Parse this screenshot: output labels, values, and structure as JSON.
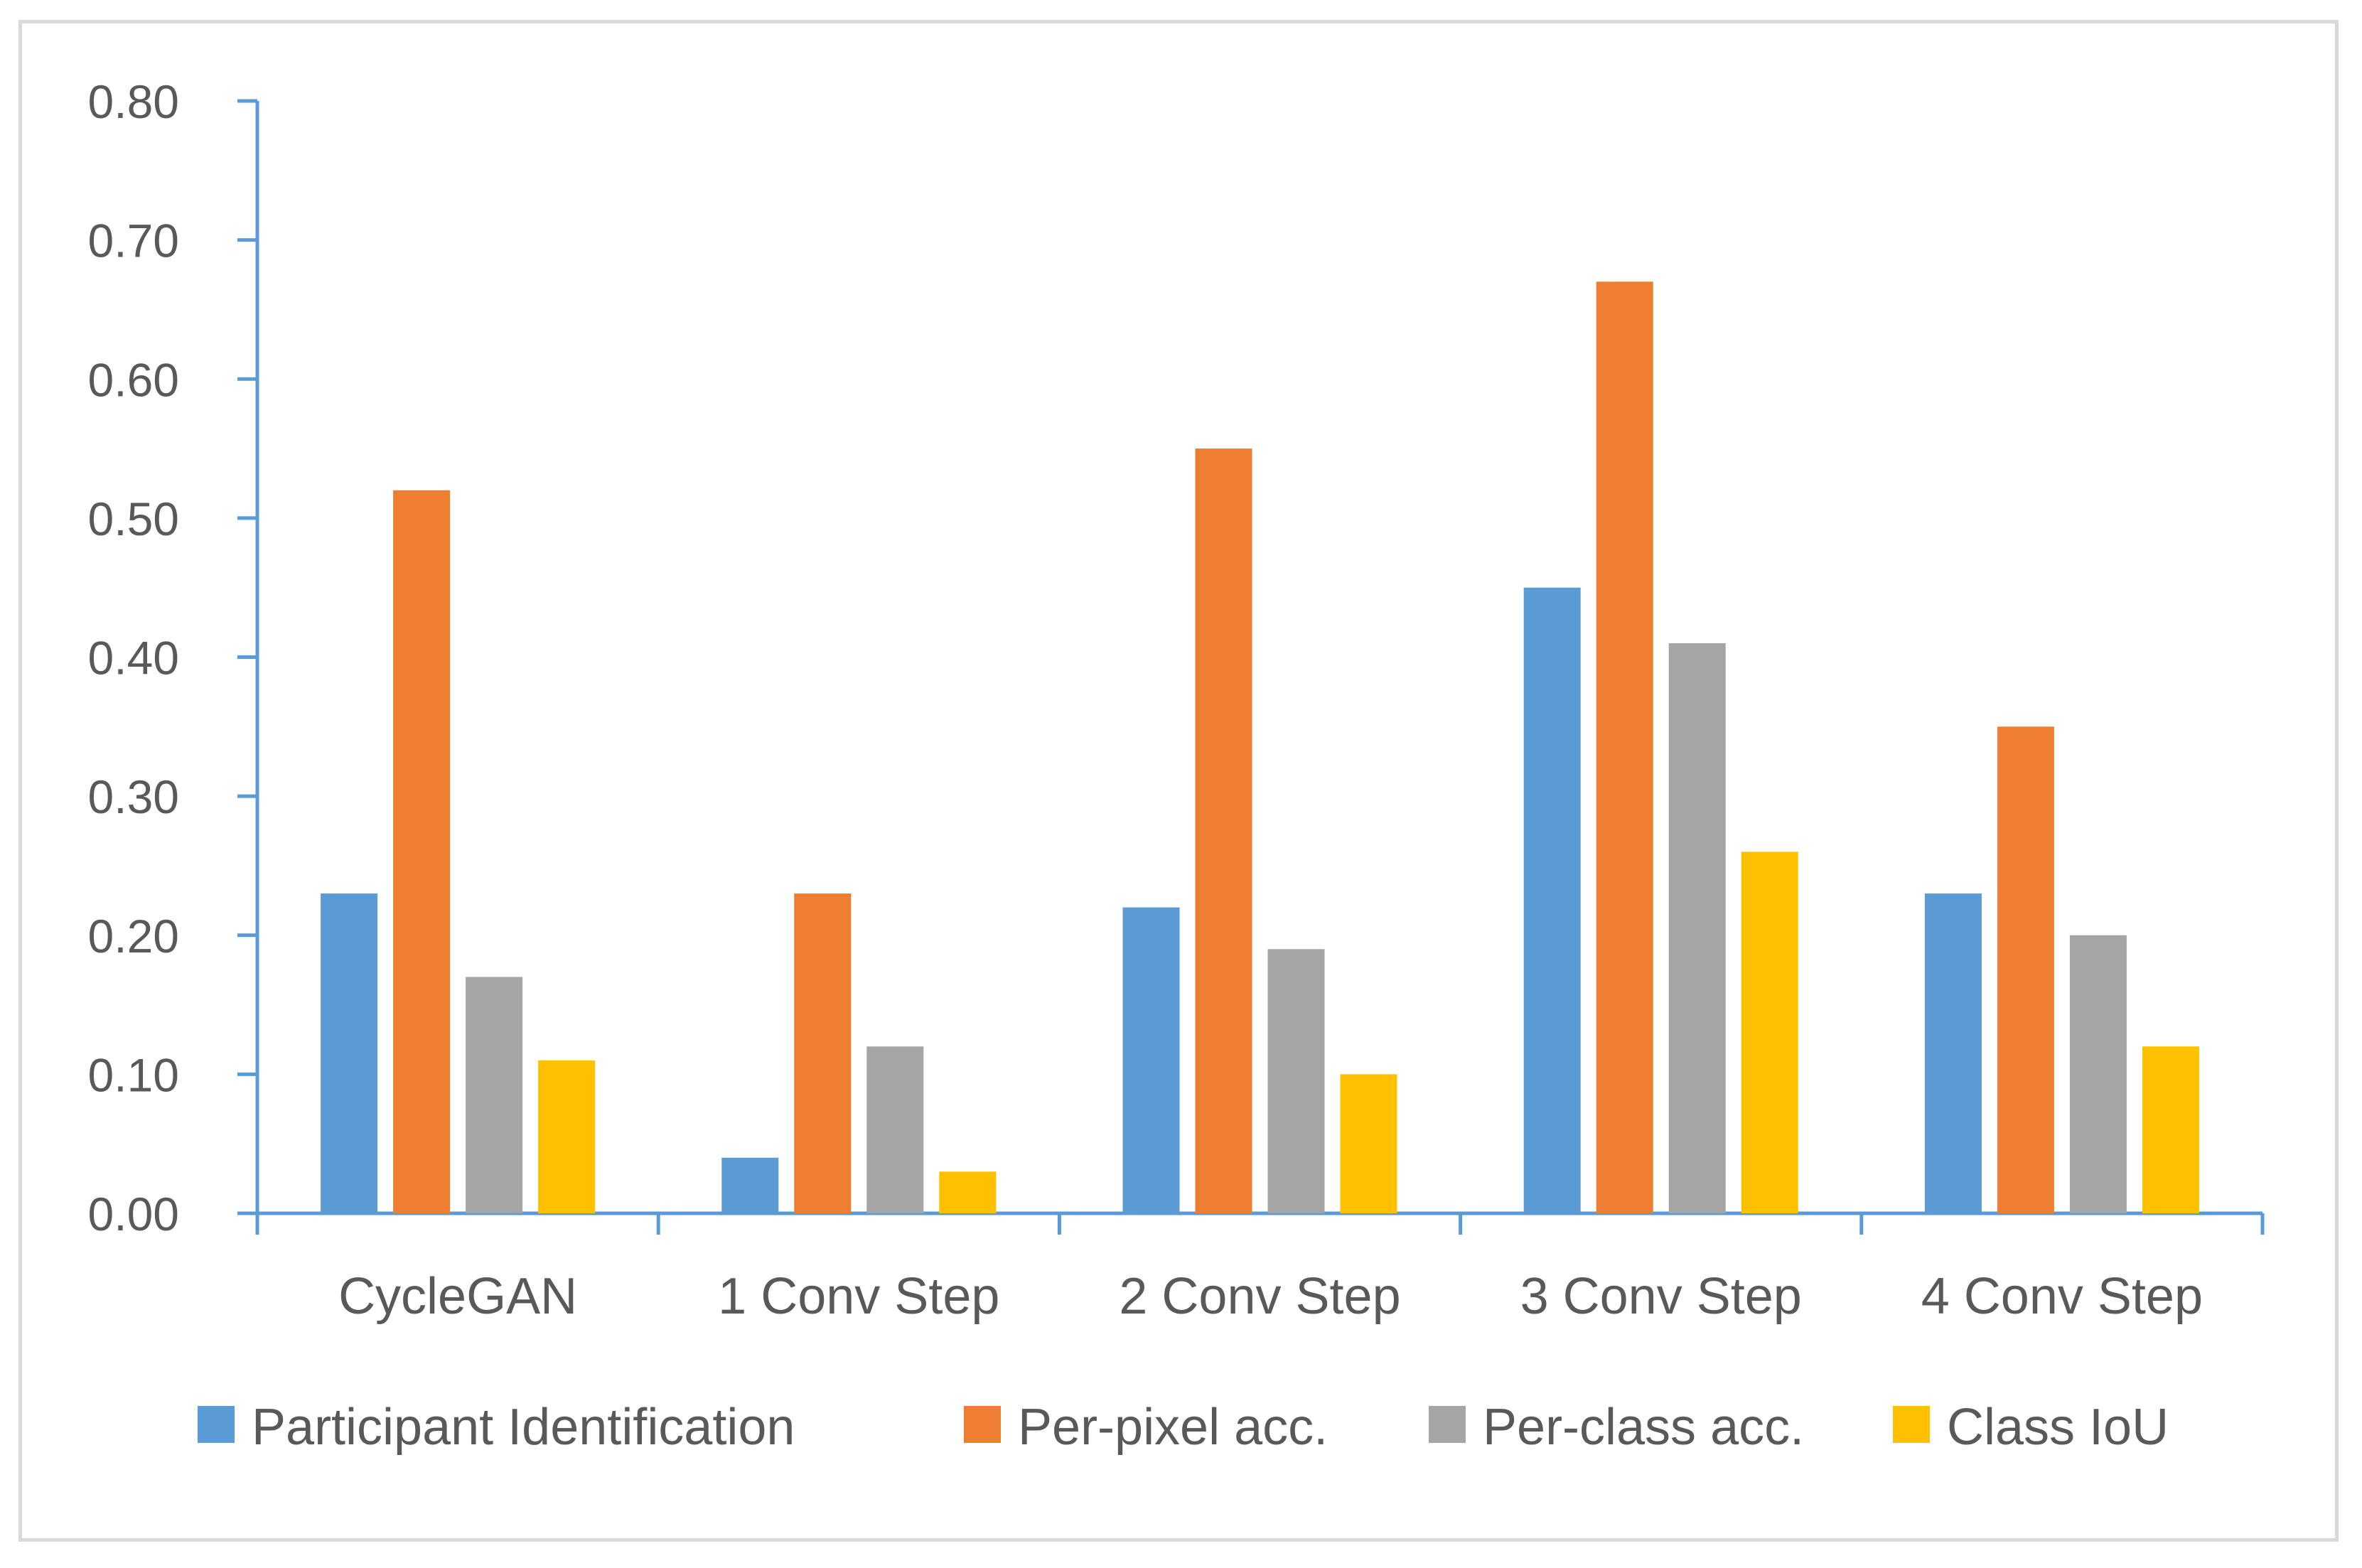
{
  "chart_data": {
    "type": "bar",
    "title": "",
    "xlabel": "",
    "ylabel": "",
    "ylim": [
      0,
      0.8
    ],
    "yticks": [
      0.0,
      0.1,
      0.2,
      0.3,
      0.4,
      0.5,
      0.6,
      0.7,
      0.8
    ],
    "ytick_labels": [
      "0.00",
      "0.10",
      "0.20",
      "0.30",
      "0.40",
      "0.50",
      "0.60",
      "0.70",
      "0.80"
    ],
    "grid": false,
    "legend_position": "bottom",
    "categories": [
      "CycleGAN",
      "1 Conv Step",
      "2 Conv Step",
      "3 Conv Step",
      "4 Conv Step"
    ],
    "series": [
      {
        "name": "Participant Identification",
        "color": "#5b9bd5",
        "values": [
          0.23,
          0.04,
          0.22,
          0.45,
          0.23
        ]
      },
      {
        "name": "Per-pixel acc.",
        "color": "#ed7d31",
        "values": [
          0.52,
          0.23,
          0.55,
          0.67,
          0.35
        ]
      },
      {
        "name": "Per-class acc.",
        "color": "#a5a5a5",
        "values": [
          0.17,
          0.12,
          0.19,
          0.41,
          0.2
        ]
      },
      {
        "name": "Class IoU",
        "color": "#ffc000",
        "values": [
          0.11,
          0.03,
          0.1,
          0.26,
          0.12
        ]
      }
    ],
    "axis_color": "#5b9bd5"
  }
}
